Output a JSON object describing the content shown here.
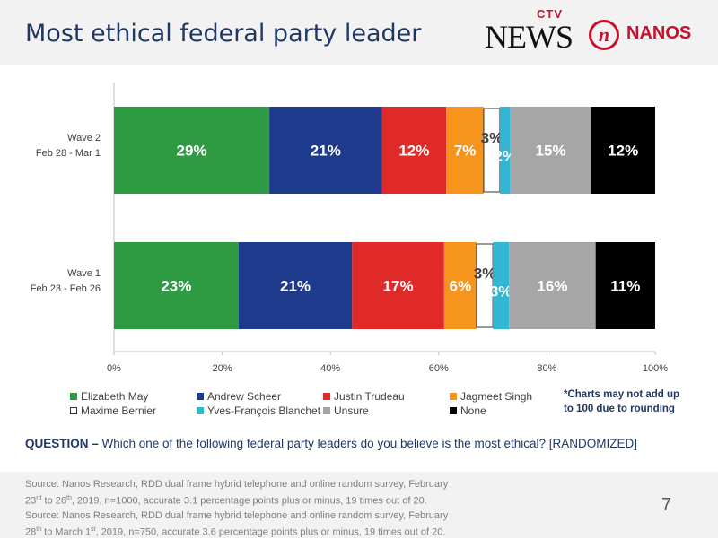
{
  "header": {
    "title": "Most ethical federal party leader",
    "logo_ctv": "CTV",
    "logo_news": "NEWS",
    "logo_nanos_mark": "n",
    "logo_nanos": "NANOS"
  },
  "chart_data": {
    "type": "bar",
    "orientation": "horizontal",
    "stacked": true,
    "categories": [
      "Wave 2\nFeb 28 - Mar 1",
      "Wave 1\nFeb 23 - Feb 26"
    ],
    "xlim": [
      0,
      100
    ],
    "x_ticks": [
      "0%",
      "20%",
      "40%",
      "60%",
      "80%",
      "100%"
    ],
    "grid": false,
    "legend_position": "bottom",
    "series": [
      {
        "name": "Elizabeth May",
        "color": "#2e9a42",
        "values": [
          29,
          23
        ],
        "labels": [
          "29%",
          "23%"
        ]
      },
      {
        "name": "Andrew Scheer",
        "color": "#1d3a8c",
        "values": [
          21,
          21
        ],
        "labels": [
          "21%",
          "21%"
        ]
      },
      {
        "name": "Justin Trudeau",
        "color": "#e02a2a",
        "values": [
          12,
          17
        ],
        "labels": [
          "12%",
          "17%"
        ]
      },
      {
        "name": "Jagmeet Singh",
        "color": "#f7941d",
        "values": [
          7,
          6
        ],
        "labels": [
          "7%",
          "6%"
        ]
      },
      {
        "name": "Maxime Bernier",
        "color": "#ffffff",
        "values": [
          3,
          3
        ],
        "labels": [
          "3%",
          "3%"
        ]
      },
      {
        "name": "Yves-François Blanchet",
        "color": "#31b6d4",
        "values": [
          2,
          3
        ],
        "labels": [
          "2%",
          "3%"
        ]
      },
      {
        "name": "Unsure",
        "color": "#a6a6a6",
        "values": [
          15,
          16
        ],
        "labels": [
          "15%",
          "16%"
        ]
      },
      {
        "name": "None",
        "color": "#000000",
        "values": [
          12,
          11
        ],
        "labels": [
          "12%",
          "11%"
        ]
      }
    ]
  },
  "note": "*Charts may not add up\nto 100 due to rounding",
  "question": {
    "prefix": "QUESTION –",
    "text": " Which one of the following federal party leaders do you believe is the most ethical? [RANDOMIZED]"
  },
  "source": {
    "line1": "Source: Nanos Research, RDD dual frame hybrid  telephone and online random survey, February",
    "line2_a": "23",
    "line2_sup1": "rd",
    "line2_b": " to 26",
    "line2_sup2": "th",
    "line2_c": ", 2019, n=1000, accurate 3.1 percentage points plus or minus, 19 times out of 20.",
    "line3": "Source: Nanos Research, RDD dual frame hybrid  telephone and online random survey, February",
    "line4_a": "28",
    "line4_sup1": "th",
    "line4_b": " to March 1",
    "line4_sup2": "st",
    "line4_c": ", 2019, n=750, accurate 3.6 percentage points plus or minus, 19 times out of 20."
  },
  "page_number": "7"
}
